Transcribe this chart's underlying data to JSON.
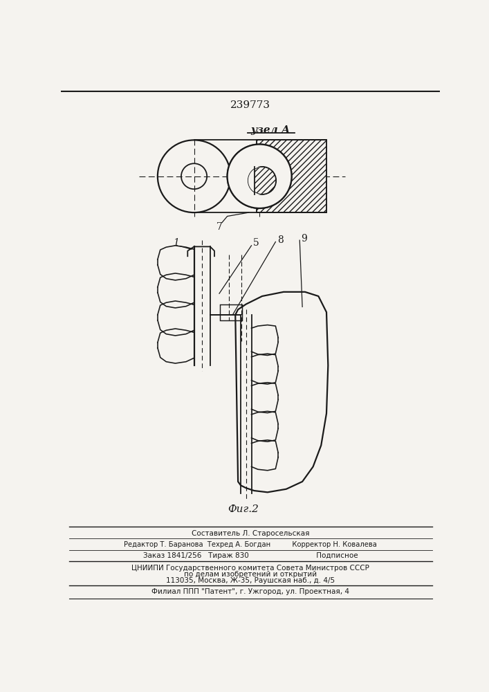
{
  "patent_number": "239773",
  "title_top": "узел А",
  "fig_label": "Фиг.2",
  "label_7": "7",
  "label_1": "1",
  "label_5": "5",
  "label_8": "8",
  "label_9": "9",
  "footer_lines": [
    "Составитель Л. Старосельская",
    "Редактор Т. Баранова  Техред А. Богдан          Корректор Н. Ковалева",
    "Заказ 1841/256   Тираж 830                              Подписное",
    "ЦНИИПИ Государственного комитета Совета Министров СССР",
    "по делам изобретений и открытий",
    "113035, Москва, Ж-35, Раушская наб., д. 4/5",
    "Филиал ППП \"Патент\", г. Ужгород, ул. Проектная, 4"
  ],
  "bg_color": "#f5f3ef",
  "line_color": "#1a1a1a"
}
